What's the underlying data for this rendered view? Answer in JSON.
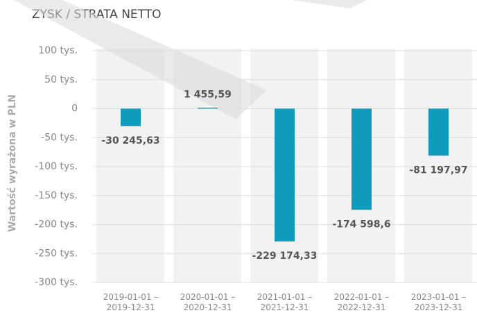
{
  "chart_data": {
    "type": "bar",
    "title": "ZYSK / STRATA NETTO",
    "y_axis_label": "Wartość wyrażona w PLN",
    "categories": [
      "2019-01-01 – 2019-12-31",
      "2020-01-01 – 2020-12-31",
      "2021-01-01 – 2021-12-31",
      "2022-01-01 – 2022-12-31",
      "2023-01-01 – 2023-12-31"
    ],
    "values": [
      -30245.63,
      1455.59,
      -229174.33,
      -174598.6,
      -81197.97
    ],
    "value_labels": [
      "-30 245,63",
      "1 455,59",
      "-229 174,33",
      "-174 598,6",
      "-81 197,97"
    ],
    "color": "#0e9bbd",
    "ylim": [
      -300000,
      100000
    ],
    "yticks": [
      {
        "value": -300000,
        "label": "-300 tys."
      },
      {
        "value": -250000,
        "label": "-250 tys."
      },
      {
        "value": -200000,
        "label": "-200 tys."
      },
      {
        "value": -150000,
        "label": "-150 tys."
      },
      {
        "value": -100000,
        "label": "-100 tys."
      },
      {
        "value": -50000,
        "label": "-50 tys."
      },
      0,
      {
        "value": 50000,
        "label": "50 tys."
      },
      {
        "value": 100000,
        "label": "100 tys."
      }
    ],
    "grid": true
  }
}
